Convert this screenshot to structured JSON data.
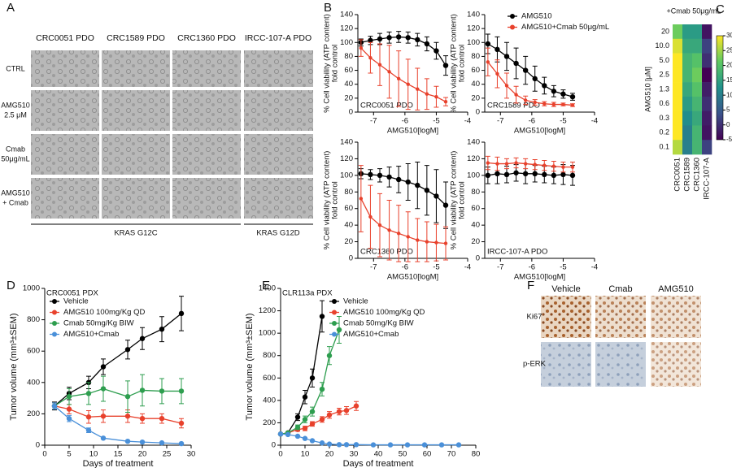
{
  "panels": [
    "A",
    "B",
    "C",
    "D",
    "E",
    "F"
  ],
  "panel_a": {
    "columns": [
      "CRC0051 PDO",
      "CRC1589 PDO",
      "CRC1360 PDO",
      "IRCC-107-A PDO"
    ],
    "rows": [
      [
        "CTRL"
      ],
      [
        "AMG510",
        "2.5 μM"
      ],
      [
        "Cmab",
        "50μg/mL"
      ],
      [
        "AMG510",
        "+ Cmab"
      ]
    ],
    "groups": [
      "KRAS G12C",
      "KRAS G12D"
    ]
  },
  "panel_f": {
    "columns": [
      "Vehicle",
      "Cmab",
      "AMG510"
    ],
    "rows": [
      "Ki67",
      "p-ERK"
    ]
  },
  "chart_data": [
    {
      "type": "line",
      "annotation": "CRC0051 PDO",
      "annotation_loc": "lower left",
      "xlabel": "AMG510[logM]",
      "ylabel": [
        "% Cell viability (ATP content)",
        "fold control"
      ],
      "x": [
        -7.4,
        -7.1,
        -6.8,
        -6.5,
        -6.2,
        -5.9,
        -5.6,
        -5.3,
        -5.0,
        -4.7
      ],
      "xlim": [
        -7.5,
        -4
      ],
      "xticks": [
        -7,
        -6,
        -5,
        -4
      ],
      "ylim": [
        0,
        140
      ],
      "yticks": [
        0,
        20,
        40,
        60,
        80,
        100,
        120,
        140
      ],
      "series": [
        {
          "color": "#000000",
          "values": [
            100,
            103,
            105,
            107,
            108,
            107,
            104,
            98,
            88,
            67
          ],
          "errors": [
            5,
            6,
            8,
            8,
            8,
            8,
            9,
            10,
            12,
            14
          ]
        },
        {
          "color": "#e8412c",
          "values": [
            92,
            78,
            68,
            58,
            48,
            40,
            33,
            26,
            22,
            15
          ],
          "errors": [
            12,
            22,
            30,
            38,
            40,
            36,
            30,
            22,
            15,
            6
          ]
        }
      ]
    },
    {
      "type": "line",
      "annotation": "CRC1589 PDO",
      "annotation_loc": "lower left",
      "xlabel": "AMG510[logM]",
      "ylabel": [
        "% Cell viability (ATP content)",
        "fold control"
      ],
      "x": [
        -7.4,
        -7.1,
        -6.8,
        -6.5,
        -6.2,
        -5.9,
        -5.6,
        -5.3,
        -5.0,
        -4.7
      ],
      "xlim": [
        -7.5,
        -4
      ],
      "xticks": [
        -7,
        -6,
        -5,
        -4
      ],
      "ylim": [
        0,
        140
      ],
      "yticks": [
        0,
        20,
        40,
        60,
        80,
        100,
        120,
        140
      ],
      "legend": "upper right",
      "series": [
        {
          "name": "AMG510",
          "color": "#000000",
          "values": [
            98,
            90,
            80,
            70,
            60,
            48,
            38,
            30,
            26,
            22
          ],
          "errors": [
            14,
            18,
            20,
            22,
            20,
            18,
            12,
            8,
            6,
            5
          ]
        },
        {
          "name": "AMG510+Cmab 50μg/mL",
          "color": "#e8412c",
          "values": [
            72,
            55,
            38,
            25,
            17,
            14,
            12,
            11,
            11,
            10
          ],
          "errors": [
            20,
            20,
            18,
            12,
            6,
            4,
            3,
            3,
            2,
            2
          ]
        }
      ]
    },
    {
      "type": "line",
      "annotation": "CRC1360 PDO",
      "annotation_loc": "lower left",
      "xlabel": "AMG510[logM]",
      "ylabel": [
        "% Cell viability (ATP content)",
        "fold control"
      ],
      "x": [
        -7.4,
        -7.1,
        -6.8,
        -6.5,
        -6.2,
        -5.9,
        -5.6,
        -5.3,
        -5.0,
        -4.7
      ],
      "xlim": [
        -7.5,
        -4
      ],
      "xticks": [
        -7,
        -6,
        -5,
        -4
      ],
      "ylim": [
        0,
        140
      ],
      "yticks": [
        0,
        20,
        40,
        60,
        80,
        100,
        120,
        140
      ],
      "series": [
        {
          "color": "#000000",
          "values": [
            102,
            101,
            100,
            98,
            95,
            92,
            88,
            82,
            75,
            64
          ],
          "errors": [
            6,
            6,
            8,
            12,
            16,
            22,
            28,
            30,
            32,
            28
          ]
        },
        {
          "color": "#e8412c",
          "values": [
            72,
            50,
            40,
            34,
            30,
            26,
            22,
            20,
            19,
            18
          ],
          "errors": [
            40,
            38,
            38,
            36,
            34,
            30,
            26,
            24,
            22,
            20
          ]
        }
      ]
    },
    {
      "type": "line",
      "annotation": "IRCC-107-A PDO",
      "annotation_loc": "lower left",
      "xlabel": "AMG510[logM]",
      "ylabel": [
        "% Cell viability (ATP content)",
        "fold control"
      ],
      "x": [
        -7.4,
        -7.1,
        -6.8,
        -6.5,
        -6.2,
        -5.9,
        -5.6,
        -5.3,
        -5.0,
        -4.7
      ],
      "xlim": [
        -7.5,
        -4
      ],
      "xticks": [
        -7,
        -6,
        -5,
        -4
      ],
      "ylim": [
        0,
        140
      ],
      "yticks": [
        0,
        20,
        40,
        60,
        80,
        100,
        120,
        140
      ],
      "series": [
        {
          "color": "#000000",
          "values": [
            100,
            102,
            101,
            103,
            102,
            102,
            101,
            100,
            101,
            100
          ],
          "errors": [
            10,
            12,
            10,
            10,
            12,
            10,
            10,
            10,
            12,
            12
          ]
        },
        {
          "color": "#e8412c",
          "values": [
            115,
            114,
            114,
            115,
            114,
            113,
            112,
            111,
            110,
            110
          ],
          "errors": [
            8,
            8,
            6,
            6,
            6,
            6,
            6,
            6,
            6,
            6
          ]
        }
      ]
    },
    {
      "type": "heatmap",
      "title": "+Cmab 50μg/mL",
      "ylabel": "AMG510 [μM]",
      "rows": [
        "20",
        "10.0",
        "5.0",
        "2.5",
        "1.3",
        "0.6",
        "0.3",
        "0.2",
        "0.1"
      ],
      "columns": [
        "CRC0051",
        "CRC1589",
        "CRC1360",
        "IRCC-107-A"
      ],
      "values": [
        [
          22,
          14,
          14,
          -3
        ],
        [
          28,
          16,
          16,
          2
        ],
        [
          30,
          18,
          20,
          0
        ],
        [
          30,
          18,
          22,
          -5
        ],
        [
          30,
          16,
          20,
          -2
        ],
        [
          30,
          14,
          18,
          0
        ],
        [
          30,
          12,
          16,
          -2
        ],
        [
          30,
          10,
          18,
          -3
        ],
        [
          26,
          10,
          18,
          2
        ]
      ],
      "zlim": [
        -5,
        30
      ],
      "zticks": [
        -5,
        0,
        5,
        10,
        15,
        20,
        25,
        30
      ]
    },
    {
      "type": "line",
      "annotation": "CRC0051 PDX",
      "annotation_loc": "upper left",
      "xlabel": "Days of treatment",
      "ylabel": "Tumor volume (mm³±SEM)",
      "x": [
        2,
        5,
        9,
        12,
        17,
        20,
        24,
        28
      ],
      "xlim": [
        0,
        30
      ],
      "xticks": [
        0,
        5,
        10,
        15,
        20,
        25,
        30
      ],
      "ylim": [
        0,
        1000
      ],
      "yticks": [
        0,
        200,
        400,
        600,
        800,
        1000
      ],
      "legend": "upper left",
      "series": [
        {
          "name": "Vehicle",
          "color": "#000000",
          "values": [
            250,
            330,
            400,
            500,
            610,
            680,
            740,
            840
          ],
          "errors": [
            25,
            40,
            40,
            50,
            60,
            70,
            80,
            110
          ]
        },
        {
          "name": "AMG510 100mg/Kg QD",
          "color": "#e8412c",
          "values": [
            250,
            230,
            180,
            185,
            185,
            170,
            170,
            140
          ],
          "errors": [
            20,
            30,
            40,
            40,
            40,
            30,
            30,
            30
          ]
        },
        {
          "name": "Cmab 50mg/Kg BIW",
          "color": "#2e9e4f",
          "values": [
            250,
            310,
            330,
            360,
            310,
            350,
            345,
            345
          ],
          "errors": [
            20,
            50,
            70,
            80,
            100,
            100,
            80,
            80
          ]
        },
        {
          "name": "AMG510+Cmab",
          "color": "#4a90d9",
          "values": [
            250,
            170,
            95,
            45,
            25,
            20,
            15,
            10
          ],
          "errors": [
            20,
            20,
            15,
            5,
            5,
            3,
            3,
            3
          ]
        }
      ]
    },
    {
      "type": "line",
      "annotation": "CLR113a PDX",
      "annotation_loc": "upper left",
      "xlabel": "Days of treatment",
      "ylabel": "Tumor volume (mm³±SEM)",
      "xlim": [
        0,
        80
      ],
      "xticks": [
        0,
        10,
        20,
        30,
        40,
        50,
        60,
        70,
        80
      ],
      "ylim": [
        0,
        1400
      ],
      "yticks": [
        0,
        200,
        400,
        600,
        800,
        1000,
        1200,
        1400
      ],
      "legend": "upper right",
      "series": [
        {
          "name": "Vehicle",
          "color": "#000000",
          "x": [
            0,
            3,
            7,
            10,
            13,
            17
          ],
          "values": [
            100,
            110,
            250,
            430,
            600,
            1150
          ],
          "errors": [
            5,
            10,
            30,
            60,
            80,
            140
          ]
        },
        {
          "name": "AMG510 100mg/Kg QD",
          "color": "#e8412c",
          "x": [
            0,
            3,
            7,
            10,
            13,
            17,
            20,
            24,
            27,
            31
          ],
          "values": [
            100,
            110,
            140,
            150,
            190,
            230,
            270,
            300,
            310,
            350
          ],
          "errors": [
            5,
            10,
            15,
            20,
            20,
            25,
            30,
            30,
            35,
            40
          ]
        },
        {
          "name": "Cmab 50mg/Kg BIW",
          "color": "#2e9e4f",
          "x": [
            0,
            3,
            7,
            10,
            13,
            17,
            20,
            24
          ],
          "values": [
            100,
            110,
            160,
            230,
            300,
            500,
            800,
            1030
          ],
          "errors": [
            5,
            10,
            20,
            30,
            40,
            60,
            80,
            120
          ]
        },
        {
          "name": "AMG510+Cmab",
          "color": "#4a90d9",
          "x": [
            0,
            3,
            7,
            10,
            13,
            17,
            20,
            24,
            27,
            31,
            38,
            45,
            52,
            59,
            66,
            73
          ],
          "values": [
            100,
            95,
            80,
            60,
            40,
            20,
            10,
            5,
            5,
            5,
            3,
            3,
            3,
            3,
            3,
            3
          ],
          "errors": [
            5,
            5,
            5,
            5,
            4,
            3,
            2,
            1,
            1,
            1,
            1,
            1,
            1,
            1,
            1,
            1
          ]
        }
      ]
    }
  ]
}
